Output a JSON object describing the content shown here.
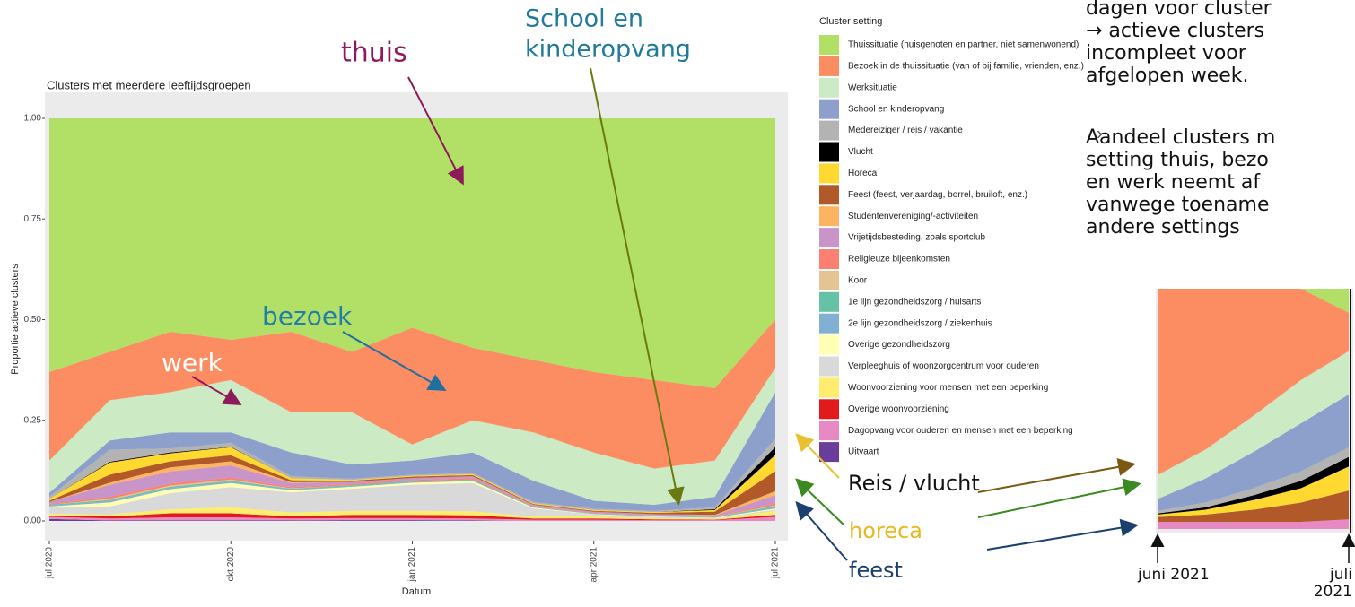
{
  "chart_data": [
    {
      "type": "area",
      "stacked": true,
      "title": "Clusters met meerdere leeftijdsgroepen",
      "x_label": "Datum",
      "y_label": "Proportie actieve clusters",
      "legend_title": "Cluster setting",
      "x": [
        "2020-07",
        "2020-08",
        "2020-09",
        "2020-10",
        "2020-11",
        "2020-12",
        "2021-01",
        "2021-02",
        "2021-03",
        "2021-04",
        "2021-05",
        "2021-06",
        "2021-07"
      ],
      "xlim": [
        "2020-07",
        "2021-07"
      ],
      "xticks": [
        {
          "value": "2020-07",
          "label": "jul 2020"
        },
        {
          "value": "2020-10",
          "label": "okt 2020"
        },
        {
          "value": "2021-01",
          "label": "jan 2021"
        },
        {
          "value": "2021-04",
          "label": "apr 2021"
        },
        {
          "value": "2021-07",
          "label": "jul 2021"
        }
      ],
      "ylim": [
        -0.05,
        1.065
      ],
      "yticks": [
        {
          "value": 0,
          "label": "0.00"
        },
        {
          "value": 0.25,
          "label": "0.25"
        },
        {
          "value": 0.5,
          "label": "0.50"
        },
        {
          "value": 0.75,
          "label": "0.75"
        },
        {
          "value": 1,
          "label": "1.00"
        }
      ],
      "series": [
        {
          "name": "Thuissituatie (huisgenoten en partner, niet samenwonend)",
          "color": "#b2df65",
          "values": [
            0.63,
            0.58,
            0.53,
            0.55,
            0.53,
            0.58,
            0.52,
            0.57,
            0.6,
            0.63,
            0.65,
            0.67,
            0.5
          ]
        },
        {
          "name": "Bezoek in de thuissituatie (van of bij familie, vrienden, enz.)",
          "color": "#fc8d62",
          "values": [
            0.22,
            0.12,
            0.15,
            0.1,
            0.2,
            0.15,
            0.29,
            0.18,
            0.18,
            0.2,
            0.22,
            0.18,
            0.12
          ]
        },
        {
          "name": "Werksituatie",
          "color": "#ccebc5",
          "values": [
            0.08,
            0.1,
            0.1,
            0.13,
            0.1,
            0.13,
            0.04,
            0.08,
            0.12,
            0.12,
            0.09,
            0.09,
            0.06
          ]
        },
        {
          "name": "School en kinderopvang",
          "color": "#8da0cb",
          "values": [
            0.01,
            0.023,
            0.04,
            0.026,
            0.059,
            0.035,
            0.035,
            0.051,
            0.053,
            0.02,
            0.015,
            0.026,
            0.116
          ]
        },
        {
          "name": "Medereiziger / reis / vakantie",
          "color": "#b3b3b3",
          "values": [
            0.005,
            0.03,
            0.01,
            0.01,
            0.005,
            0.003,
            0.003,
            0.003,
            0.003,
            0.003,
            0.003,
            0.005,
            0.02
          ]
        },
        {
          "name": "Vlucht",
          "color": "#000000",
          "values": [
            0,
            0.002,
            0.002,
            0.001,
            0,
            0,
            0,
            0,
            0,
            0,
            0,
            0.002,
            0.02
          ]
        },
        {
          "name": "Horeca",
          "color": "#ffd92f",
          "values": [
            0.005,
            0.03,
            0.02,
            0.02,
            0.005,
            0.002,
            0.002,
            0.002,
            0.002,
            0.002,
            0.002,
            0.004,
            0.04
          ]
        },
        {
          "name": "Feest (feest, verjaardag, borrel, bruiloft, enz.)",
          "color": "#b15928",
          "values": [
            0.003,
            0.02,
            0.015,
            0.015,
            0.005,
            0.003,
            0.003,
            0.003,
            0.002,
            0.002,
            0.003,
            0.008,
            0.05
          ]
        },
        {
          "name": "Studentenvereniging/-activiteiten",
          "color": "#fdb462",
          "values": [
            0,
            0.005,
            0.01,
            0.01,
            0.002,
            0,
            0,
            0,
            0,
            0,
            0,
            0.001,
            0.01
          ]
        },
        {
          "name": "Vrijetijdsbesteding, zoals sportclub",
          "color": "#c994c7",
          "values": [
            0.005,
            0.03,
            0.03,
            0.03,
            0.01,
            0.005,
            0.005,
            0.005,
            0.003,
            0.003,
            0.003,
            0.003,
            0.02
          ]
        },
        {
          "name": "Religieuze bijeenkomsten",
          "color": "#fb8072",
          "values": [
            0.002,
            0.005,
            0.005,
            0.005,
            0.003,
            0.003,
            0.003,
            0.003,
            0.002,
            0.001,
            0.001,
            0.001,
            0.005
          ]
        },
        {
          "name": "Koor",
          "color": "#e5c494",
          "values": [
            0,
            0.003,
            0.003,
            0.003,
            0.001,
            0,
            0,
            0,
            0,
            0,
            0,
            0,
            0.002
          ]
        },
        {
          "name": "1e lijn gezondheidszorg / huisarts",
          "color": "#66c2a5",
          "values": [
            0.002,
            0.003,
            0.003,
            0.003,
            0.002,
            0.002,
            0.002,
            0.002,
            0.001,
            0.001,
            0.001,
            0.001,
            0.003
          ]
        },
        {
          "name": "2e lijn gezondheidszorg / ziekenhuis",
          "color": "#80b1d3",
          "values": [
            0.002,
            0.003,
            0.003,
            0.003,
            0.002,
            0.002,
            0.002,
            0.002,
            0.001,
            0.001,
            0.001,
            0.001,
            0.003
          ]
        },
        {
          "name": "Overige gezondheidszorg",
          "color": "#ffffb3",
          "values": [
            0.003,
            0.01,
            0.01,
            0.01,
            0.005,
            0.005,
            0.005,
            0.005,
            0.002,
            0.001,
            0.001,
            0.001,
            0.003
          ]
        },
        {
          "name": "Verpleeghuis of woonzorgcentrum voor ouderen",
          "color": "#d9d9d9",
          "values": [
            0.015,
            0.02,
            0.04,
            0.05,
            0.05,
            0.055,
            0.065,
            0.07,
            0.02,
            0.005,
            0.003,
            0.002,
            0.003
          ]
        },
        {
          "name": "Woonvoorziening voor mensen met een beperking",
          "color": "#ffed6f",
          "values": [
            0.005,
            0.005,
            0.01,
            0.015,
            0.01,
            0.01,
            0.01,
            0.01,
            0.005,
            0.005,
            0.003,
            0.002,
            0.01
          ]
        },
        {
          "name": "Overige woonvoorziening",
          "color": "#e31a1c",
          "values": [
            0.003,
            0.005,
            0.01,
            0.01,
            0.005,
            0.008,
            0.008,
            0.008,
            0.003,
            0.003,
            0.002,
            0.001,
            0.005
          ]
        },
        {
          "name": "Dagopvang voor ouderen en mensen met een beperking",
          "color": "#e78ac3",
          "values": [
            0.005,
            0.005,
            0.008,
            0.008,
            0.005,
            0.005,
            0.005,
            0.005,
            0.003,
            0.003,
            0.002,
            0.002,
            0.01
          ]
        },
        {
          "name": "Uitvaart",
          "color": "#6a3d9a",
          "values": [
            0.005,
            0.001,
            0.001,
            0.001,
            0.001,
            0.002,
            0.002,
            0.001,
            0,
            0,
            0,
            0,
            0
          ]
        }
      ],
      "annotations": [
        {
          "text": "thuis",
          "color": "#8e1a5c"
        },
        {
          "text": "School en",
          "color": "#1f7a9c"
        },
        {
          "text": "kinderopvang",
          "color": "#1f7a9c"
        },
        {
          "text": "bezoek",
          "color": "#1f7fa8"
        },
        {
          "text": "werk",
          "color": "#ffffff"
        },
        {
          "text": "Reis / vlucht",
          "color": "#111111"
        },
        {
          "text": "horeca",
          "color": "#e8b820"
        },
        {
          "text": "feest",
          "color": "#1b3f6e"
        }
      ]
    },
    {
      "type": "area",
      "stacked": true,
      "categories": [
        "juni 2021",
        null,
        null,
        null,
        "juli 2021"
      ],
      "ylim": [
        0,
        1
      ],
      "series": [
        {
          "color": "#b2df65",
          "values": [
            0,
            0,
            0,
            0,
            0.1
          ]
        },
        {
          "color": "#fc8d62",
          "values": [
            0.775,
            0.67,
            0.53,
            0.38,
            0.16
          ]
        },
        {
          "color": "#ccebc5",
          "values": [
            0.1,
            0.12,
            0.15,
            0.18,
            0.18
          ]
        },
        {
          "color": "#8da0cb",
          "values": [
            0.05,
            0.1,
            0.15,
            0.2,
            0.22
          ]
        },
        {
          "color": "#b3b3b3",
          "values": [
            0.01,
            0.02,
            0.03,
            0.04,
            0.04
          ]
        },
        {
          "color": "#000000",
          "values": [
            0.005,
            0.01,
            0.02,
            0.03,
            0.04
          ]
        },
        {
          "color": "#ffd92f",
          "values": [
            0.01,
            0.02,
            0.04,
            0.06,
            0.1
          ]
        },
        {
          "color": "#b15928",
          "values": [
            0.02,
            0.03,
            0.05,
            0.08,
            0.12
          ]
        },
        {
          "color": "#e78ac3",
          "values": [
            0.03,
            0.03,
            0.03,
            0.03,
            0.04
          ]
        }
      ]
    }
  ],
  "notes": [
    [
      "dagen voor cluster",
      "→ actieve clusters",
      "incompleet voor",
      "afgelopen week."
    ],
    [
      "Aandeel clusters m",
      "setting thuis, bezo",
      "en werk neemt af",
      "vanwege toename",
      "andere settings"
    ]
  ]
}
